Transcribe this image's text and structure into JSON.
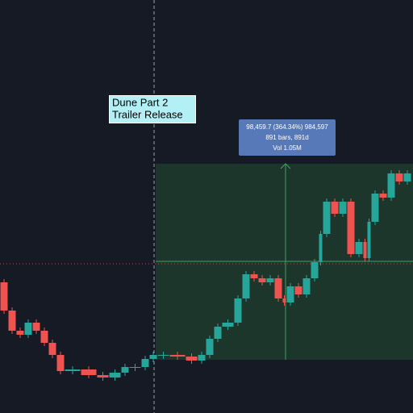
{
  "annotation": {
    "lines": [
      "Dune Part 2",
      "Trailer Release"
    ]
  },
  "measure": {
    "lines": [
      "98,459.7 (364.34%) 984,597",
      "891 bars, 891d",
      "Vol 1.05M"
    ]
  },
  "price_chart": {
    "ylim": [
      0,
      512
    ],
    "prices": [
      162,
      127,
      102,
      97,
      112,
      102,
      87,
      72,
      52,
      54,
      47,
      44,
      50,
      57,
      57,
      67,
      72,
      72,
      70,
      65,
      72,
      92,
      107,
      112,
      142,
      172,
      167,
      162,
      167,
      142,
      137,
      157,
      147,
      167,
      187,
      222,
      262,
      247,
      262,
      197,
      212,
      192,
      237,
      272,
      267,
      297,
      287,
      297
    ],
    "x": [
      0,
      10,
      20,
      30,
      40,
      50,
      60,
      70,
      80,
      100,
      120,
      135,
      150,
      160,
      175,
      185,
      195,
      210,
      230,
      245,
      255,
      265,
      275,
      290,
      300,
      310,
      320,
      330,
      340,
      350,
      355,
      365,
      375,
      385,
      395,
      400,
      410,
      420,
      430,
      440,
      450,
      455,
      460,
      470,
      480,
      490,
      500,
      510
    ]
  }
}
